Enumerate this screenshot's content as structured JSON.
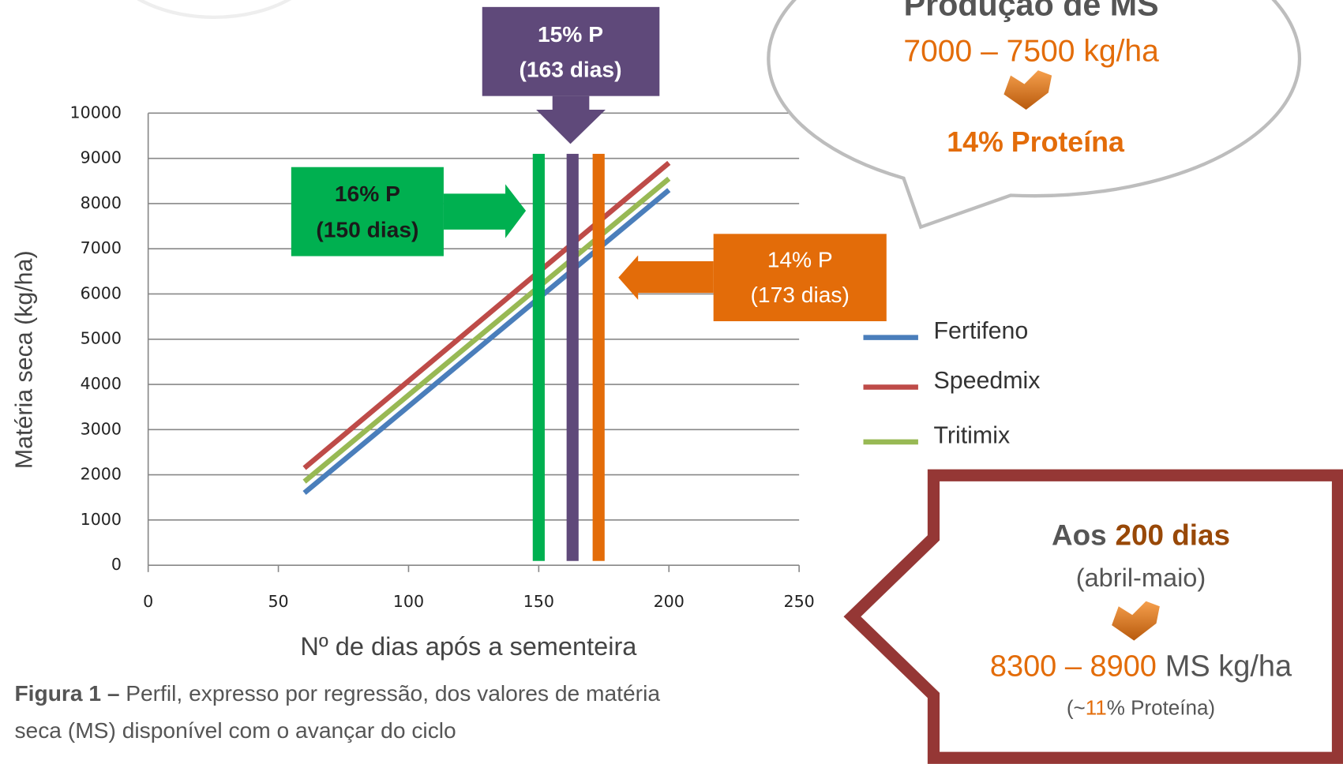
{
  "chart_data": {
    "type": "line",
    "x": [
      60,
      200
    ],
    "series": [
      {
        "name": "Fertifeno",
        "color": "#4a7ebb",
        "values": [
          1600,
          8300
        ]
      },
      {
        "name": "Speedmix",
        "color": "#be4b48",
        "values": [
          2150,
          8900
        ]
      },
      {
        "name": "Tritimix",
        "color": "#98b954",
        "values": [
          1850,
          8550
        ]
      }
    ],
    "xlim": [
      0,
      250
    ],
    "xticks": [
      0,
      50,
      100,
      150,
      200,
      250
    ],
    "ylim": [
      0,
      10000
    ],
    "yticks": [
      0,
      1000,
      2000,
      3000,
      4000,
      5000,
      6000,
      7000,
      8000,
      9000,
      10000
    ],
    "xlabel": "Nº de dias após a sementeira",
    "ylabel": "Matéria seca (kg/ha)",
    "grid": true,
    "legend": "right",
    "markers": [
      {
        "x": 150,
        "top": 9100,
        "color": "#00b050",
        "label": [
          "16% P",
          "(150 dias)"
        ]
      },
      {
        "x": 163,
        "top": 9100,
        "color": "#5f497a",
        "label": [
          "15% P",
          "(163 dias)"
        ]
      },
      {
        "x": 173,
        "top": 9100,
        "color": "#e36c09",
        "label": [
          "14% P",
          "(173 dias)"
        ]
      }
    ]
  },
  "callouts": {
    "bubble": {
      "title": "Produção de MS",
      "range": "7000 – 7500 kg/ha",
      "protein": "14% Proteína"
    },
    "box": {
      "lead": "Aos",
      "days": "200 dias",
      "period": "(abril-maio)",
      "range": "8300 – 8900",
      "unit": "MS kg/ha",
      "protein_open": "(~",
      "protein_value": "11",
      "protein_close": "% Proteína)"
    }
  },
  "caption": {
    "bold": "Figura 1 –",
    "lines": [
      "Perfil, expresso por regressão, dos valores de matéria",
      "seca (MS) disponível com o avançar do ciclo"
    ]
  }
}
